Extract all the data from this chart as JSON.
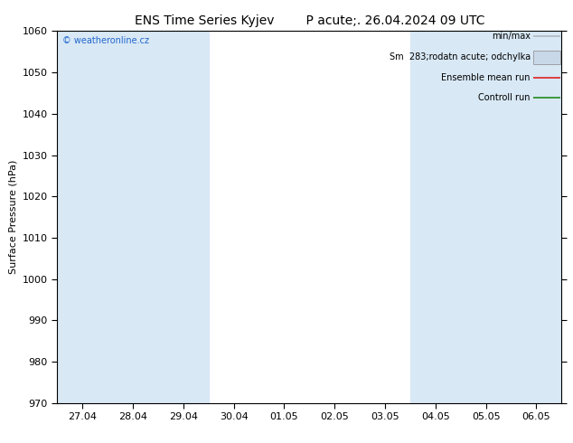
{
  "title_left": "ENS Time Series Kyjev",
  "title_right": "P acute;. 26.04.2024 09 UTC",
  "ylabel": "Surface Pressure (hPa)",
  "watermark": "© weatheronline.cz",
  "ylim": [
    970,
    1060
  ],
  "yticks": [
    970,
    980,
    990,
    1000,
    1010,
    1020,
    1030,
    1040,
    1050,
    1060
  ],
  "x_labels": [
    "27.04",
    "28.04",
    "29.04",
    "30.04",
    "01.05",
    "02.05",
    "03.05",
    "04.05",
    "05.05",
    "06.05"
  ],
  "shade_band_indices": [
    0,
    1,
    2,
    7,
    8,
    9
  ],
  "background_color": "#ffffff",
  "band_color": "#d8e8f5",
  "legend_minmax_color": "#b0b8c0",
  "legend_spread_color": "#c8d8e8",
  "legend_ensemble_color": "#dd2222",
  "legend_control_color": "#228822",
  "font_size_title": 10,
  "font_size_axis": 8,
  "font_size_legend": 7,
  "font_size_watermark": 7,
  "watermark_color": "#2266cc"
}
